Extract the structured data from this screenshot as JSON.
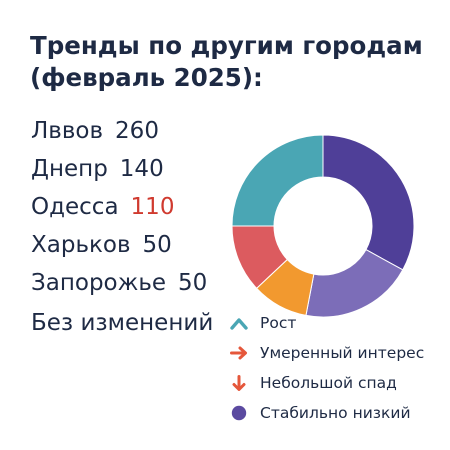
{
  "title": "Тренды по другим городам (февраль 2025):",
  "cities": [
    {
      "name": "Лввов",
      "value": "260",
      "highlight": false
    },
    {
      "name": "Днепр",
      "value": "140",
      "highlight": false
    },
    {
      "name": "Одесса",
      "value": "110",
      "highlight": true
    },
    {
      "name": "Харьков",
      "value": "50",
      "highlight": false
    },
    {
      "name": "Запорожье",
      "value": "50",
      "highlight": false
    }
  ],
  "no_change_label": "Без изменений",
  "colors": {
    "text": "#1e2a44",
    "highlight": "#d03a2f",
    "teal": "#4aa6b4",
    "red": "#dc5b5f",
    "orange": "#f2992f",
    "light_purple": "#7c6db8",
    "dark_purple": "#4f3f98"
  },
  "legend": [
    {
      "icon": "trend-up-icon",
      "label": "Рост",
      "color": "#4aa6b4"
    },
    {
      "icon": "arrow-right-icon",
      "label": "Умеренный интерес",
      "color": "#e5573b"
    },
    {
      "icon": "arrow-down-icon",
      "label": "Небольшой спад",
      "color": "#e5573b"
    },
    {
      "icon": "circle-icon",
      "label": "Стабильно низкий",
      "color": "#5b4aa0"
    }
  ],
  "chart_data": {
    "type": "pie",
    "donut": true,
    "title": "",
    "slices": [
      {
        "value": 33,
        "color": "#4f3f98"
      },
      {
        "value": 20,
        "color": "#7c6db8"
      },
      {
        "value": 10,
        "color": "#f2992f"
      },
      {
        "value": 12,
        "color": "#dc5b5f"
      },
      {
        "value": 25,
        "color": "#4aa6b4"
      }
    ]
  }
}
